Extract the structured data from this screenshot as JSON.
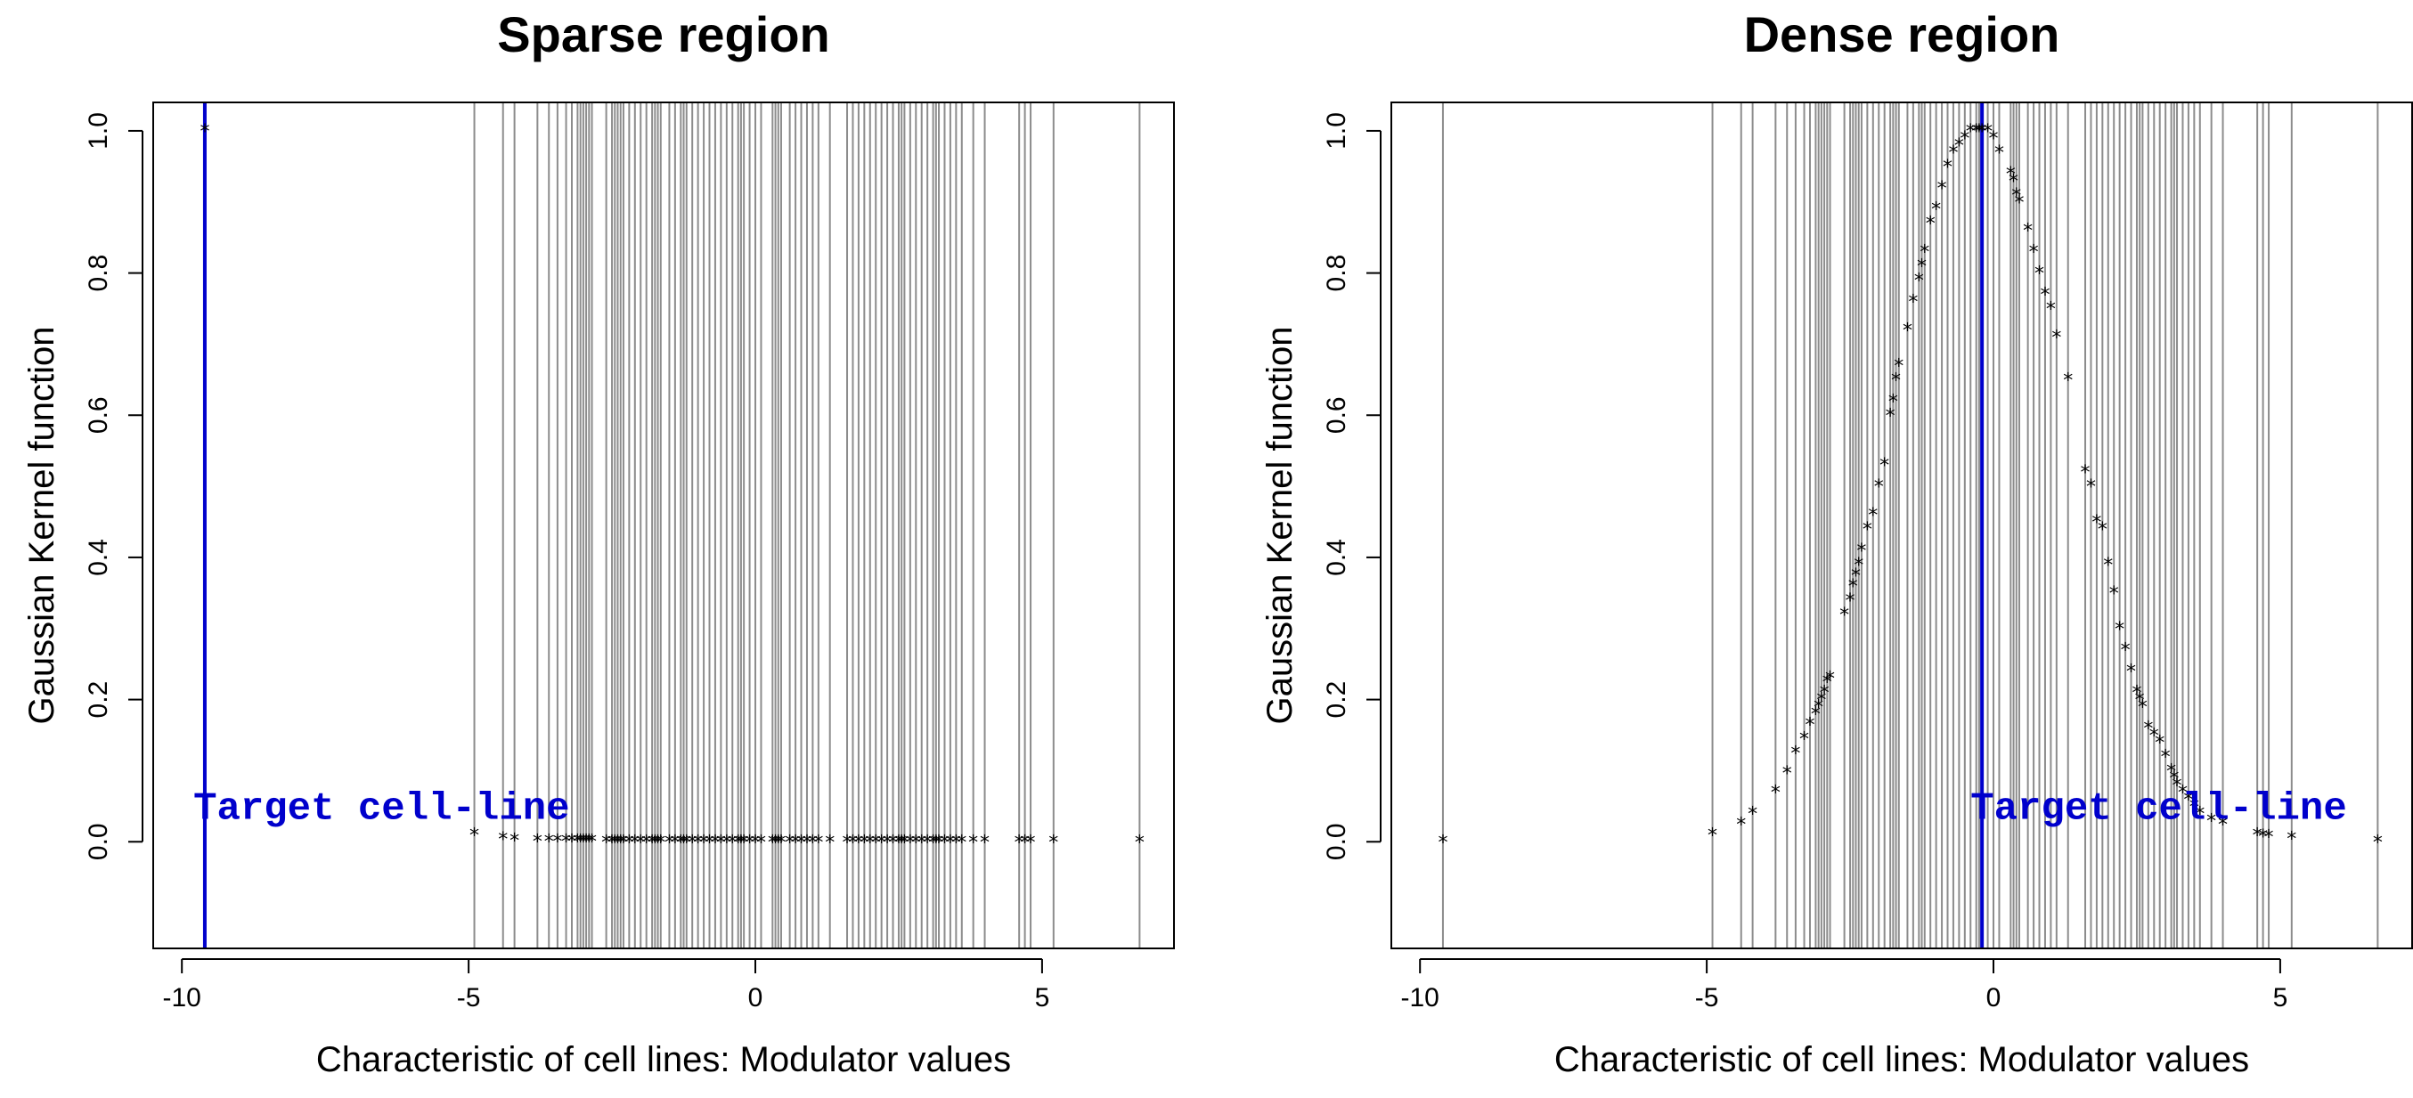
{
  "chart_data": [
    {
      "type": "scatter",
      "title": "Sparse region",
      "xlabel": "Characteristic of cell lines: Modulator values",
      "ylabel": "Gaussian Kernel function",
      "xlim": [
        -10.5,
        7.3
      ],
      "ylim": [
        -0.15,
        1.04
      ],
      "x_ticks": [
        -10,
        -5,
        0,
        5
      ],
      "x_tick_labels": [
        "-10",
        "-5",
        "0",
        "5"
      ],
      "y_ticks": [
        0.0,
        0.2,
        0.4,
        0.6,
        0.8,
        1.0
      ],
      "y_tick_labels": [
        "0.0",
        "0.2",
        "0.4",
        "0.6",
        "0.8",
        "1.0"
      ],
      "target_x": -9.6,
      "target_color": "#0000cc",
      "annotation": "Target cell-line",
      "annotation_x": -9.8,
      "annotation_y": 0.05,
      "grid_line_color": "#8c8c8c",
      "modulator_values": [
        -9.6,
        -4.9,
        -4.4,
        -4.2,
        -3.8,
        -3.6,
        -3.45,
        -3.3,
        -3.2,
        -3.1,
        -3.05,
        -3.0,
        -2.95,
        -2.9,
        -2.85,
        -2.6,
        -2.5,
        -2.45,
        -2.4,
        -2.35,
        -2.3,
        -2.2,
        -2.1,
        -2.0,
        -1.9,
        -1.8,
        -1.75,
        -1.7,
        -1.65,
        -1.5,
        -1.4,
        -1.3,
        -1.25,
        -1.2,
        -1.1,
        -1.0,
        -0.9,
        -0.8,
        -0.7,
        -0.6,
        -0.5,
        -0.4,
        -0.3,
        -0.25,
        -0.2,
        -0.1,
        0.0,
        0.1,
        0.3,
        0.35,
        0.4,
        0.45,
        0.6,
        0.7,
        0.8,
        0.9,
        1.0,
        1.1,
        1.3,
        1.6,
        1.7,
        1.8,
        1.9,
        2.0,
        2.1,
        2.2,
        2.3,
        2.4,
        2.5,
        2.55,
        2.6,
        2.7,
        2.8,
        2.9,
        3.0,
        3.1,
        3.15,
        3.2,
        3.3,
        3.4,
        3.5,
        3.6,
        3.8,
        4.0,
        4.6,
        4.7,
        4.8,
        5.2,
        6.7
      ],
      "kernel_values": [
        1.0,
        0.01,
        0.004,
        0.002,
        0.001,
        0.001,
        0.001,
        0.001,
        0.001,
        0.001,
        0.001,
        0.001,
        0.001,
        0.001,
        0.001,
        0.0,
        0.0,
        0.0,
        0.0,
        0.0,
        0.0,
        0.0,
        0.0,
        0.0,
        0.0,
        0.0,
        0.0,
        0.0,
        0.0,
        0.0,
        0.0,
        0.0,
        0.0,
        0.0,
        0.0,
        0.0,
        0.0,
        0.0,
        0.0,
        0.0,
        0.0,
        0.0,
        0.0,
        0.0,
        0.0,
        0.0,
        0.0,
        0.0,
        0.0,
        0.0,
        0.0,
        0.0,
        0.0,
        0.0,
        0.0,
        0.0,
        0.0,
        0.0,
        0.0,
        0.0,
        0.0,
        0.0,
        0.0,
        0.0,
        0.0,
        0.0,
        0.0,
        0.0,
        0.0,
        0.0,
        0.0,
        0.0,
        0.0,
        0.0,
        0.0,
        0.0,
        0.0,
        0.0,
        0.0,
        0.0,
        0.0,
        0.0,
        0.0,
        0.0,
        0.0,
        0.0,
        0.0,
        0.0,
        0.0
      ]
    },
    {
      "type": "scatter",
      "title": "Dense region",
      "xlabel": "Characteristic of cell lines: Modulator values",
      "ylabel": "Gaussian Kernel function",
      "xlim": [
        -10.5,
        7.3
      ],
      "ylim": [
        -0.15,
        1.04
      ],
      "x_ticks": [
        -10,
        -5,
        0,
        5
      ],
      "x_tick_labels": [
        "-10",
        "-5",
        "0",
        "5"
      ],
      "y_ticks": [
        0.0,
        0.2,
        0.4,
        0.6,
        0.8,
        1.0
      ],
      "y_tick_labels": [
        "0.0",
        "0.2",
        "0.4",
        "0.6",
        "0.8",
        "1.0"
      ],
      "target_x": -0.2,
      "target_color": "#0000cc",
      "annotation": "Target cell-line",
      "annotation_x": -0.4,
      "annotation_y": 0.05,
      "grid_line_color": "#8c8c8c",
      "modulator_values": [
        -9.6,
        -4.9,
        -4.4,
        -4.2,
        -3.8,
        -3.6,
        -3.45,
        -3.3,
        -3.2,
        -3.1,
        -3.05,
        -3.0,
        -2.95,
        -2.9,
        -2.85,
        -2.6,
        -2.5,
        -2.45,
        -2.4,
        -2.35,
        -2.3,
        -2.2,
        -2.1,
        -2.0,
        -1.9,
        -1.8,
        -1.75,
        -1.7,
        -1.65,
        -1.5,
        -1.4,
        -1.3,
        -1.25,
        -1.2,
        -1.1,
        -1.0,
        -0.9,
        -0.8,
        -0.7,
        -0.6,
        -0.5,
        -0.4,
        -0.3,
        -0.25,
        -0.2,
        -0.1,
        0.0,
        0.1,
        0.3,
        0.35,
        0.4,
        0.45,
        0.6,
        0.7,
        0.8,
        0.9,
        1.0,
        1.1,
        1.3,
        1.6,
        1.7,
        1.8,
        1.9,
        2.0,
        2.1,
        2.2,
        2.3,
        2.4,
        2.5,
        2.55,
        2.6,
        2.7,
        2.8,
        2.9,
        3.0,
        3.1,
        3.15,
        3.2,
        3.3,
        3.4,
        3.5,
        3.6,
        3.8,
        4.0,
        4.6,
        4.7,
        4.8,
        5.2,
        6.7
      ],
      "kernel_values": [
        0.0,
        0.01,
        0.025,
        0.04,
        0.07,
        0.097,
        0.125,
        0.145,
        0.165,
        0.18,
        0.19,
        0.2,
        0.21,
        0.225,
        0.23,
        0.32,
        0.34,
        0.36,
        0.375,
        0.39,
        0.41,
        0.44,
        0.46,
        0.5,
        0.53,
        0.6,
        0.62,
        0.65,
        0.67,
        0.72,
        0.76,
        0.79,
        0.81,
        0.83,
        0.87,
        0.89,
        0.92,
        0.95,
        0.97,
        0.98,
        0.99,
        1.0,
        1.0,
        1.0,
        1.0,
        1.0,
        0.99,
        0.97,
        0.94,
        0.93,
        0.91,
        0.9,
        0.86,
        0.83,
        0.8,
        0.77,
        0.75,
        0.71,
        0.65,
        0.52,
        0.5,
        0.45,
        0.44,
        0.39,
        0.35,
        0.3,
        0.27,
        0.24,
        0.21,
        0.2,
        0.19,
        0.16,
        0.15,
        0.14,
        0.12,
        0.1,
        0.09,
        0.08,
        0.07,
        0.06,
        0.05,
        0.04,
        0.03,
        0.025,
        0.01,
        0.008,
        0.007,
        0.005,
        0.0
      ]
    }
  ]
}
